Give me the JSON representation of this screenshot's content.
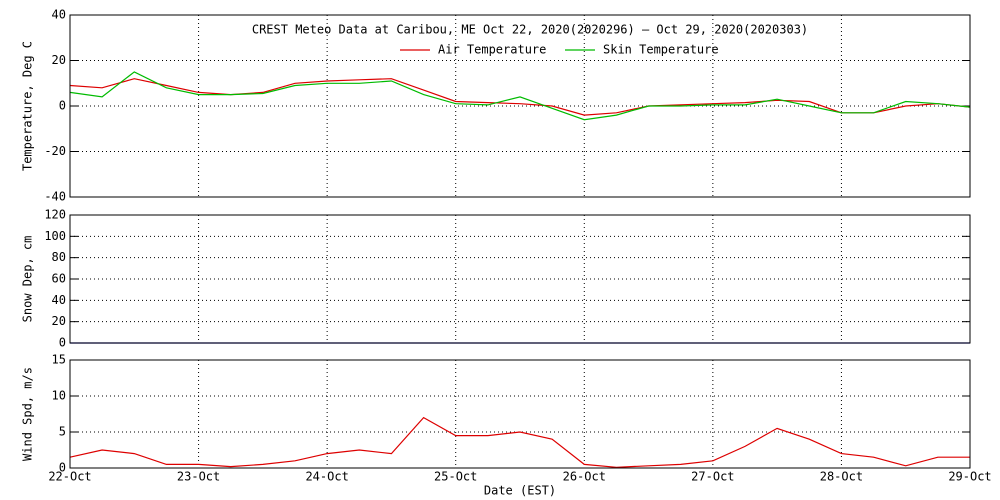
{
  "chart_data": [
    {
      "type": "line",
      "title": "CREST Meteo Data at Caribou, ME   Oct 22, 2020(2020296) — Oct 29, 2020(2020303)",
      "ylabel": "Temperature, Deg C",
      "grid": true,
      "x": [
        296,
        296.25,
        296.5,
        296.75,
        297,
        297.25,
        297.5,
        297.75,
        298,
        298.25,
        298.5,
        298.75,
        299,
        299.25,
        299.5,
        299.75,
        300,
        300.25,
        300.5,
        300.75,
        301,
        301.25,
        301.5,
        301.75,
        302,
        302.25,
        302.5,
        302.75,
        303
      ],
      "xlim": [
        296,
        303
      ],
      "xticks": [
        296,
        297,
        298,
        299,
        300,
        301,
        302,
        303
      ],
      "ylim": [
        -40,
        40
      ],
      "yticks": [
        -40,
        -20,
        0,
        20,
        40
      ],
      "series": [
        {
          "name": "Air Temperature",
          "color": "#dd0000",
          "values": [
            9,
            8,
            12,
            9,
            6,
            5,
            6,
            10,
            11,
            11.5,
            12,
            7,
            2,
            1.5,
            1,
            0,
            -4,
            -3,
            0,
            0.5,
            1,
            1.5,
            2.5,
            2,
            -3,
            -3,
            0,
            1,
            -0.5
          ]
        },
        {
          "name": "Skin Temperature",
          "color": "#00bb00",
          "values": [
            6,
            4,
            15,
            8,
            5,
            5,
            5.5,
            9,
            10,
            10,
            11,
            5,
            1,
            0.5,
            4,
            -1,
            -6,
            -4,
            0,
            0,
            0.5,
            0.5,
            3,
            0,
            -3,
            -3,
            2,
            1,
            -0.5
          ]
        }
      ]
    },
    {
      "type": "line",
      "ylabel": "Snow Dep, cm",
      "grid": true,
      "x": [
        296,
        296.25,
        296.5,
        296.75,
        297,
        297.25,
        297.5,
        297.75,
        298,
        298.25,
        298.5,
        298.75,
        299,
        299.25,
        299.5,
        299.75,
        300,
        300.25,
        300.5,
        300.75,
        301,
        301.25,
        301.5,
        301.75,
        302,
        302.25,
        302.5,
        302.75,
        303
      ],
      "xlim": [
        296,
        303
      ],
      "xticks": [
        296,
        297,
        298,
        299,
        300,
        301,
        302,
        303
      ],
      "ylim": [
        0,
        120
      ],
      "yticks": [
        0,
        20,
        40,
        60,
        80,
        100,
        120
      ],
      "series": [
        {
          "color": "#0000cc",
          "values": [
            0,
            0,
            0,
            0,
            0,
            0,
            0,
            0,
            0,
            0,
            0,
            0,
            0,
            0,
            0,
            0,
            0,
            0,
            0,
            0,
            0,
            0,
            0,
            0,
            0,
            0,
            0,
            0,
            0
          ]
        }
      ]
    },
    {
      "type": "line",
      "ylabel": "Wind Spd, m/s",
      "xlabel": "Date (EST)",
      "grid": true,
      "x": [
        296,
        296.25,
        296.5,
        296.75,
        297,
        297.25,
        297.5,
        297.75,
        298,
        298.25,
        298.5,
        298.75,
        299,
        299.25,
        299.5,
        299.75,
        300,
        300.25,
        300.5,
        300.75,
        301,
        301.25,
        301.5,
        301.75,
        302,
        302.25,
        302.5,
        302.75,
        303
      ],
      "xlim": [
        296,
        303
      ],
      "xticks": [
        {
          "value": 296,
          "label": "22-Oct"
        },
        {
          "value": 297,
          "label": "23-Oct"
        },
        {
          "value": 298,
          "label": "24-Oct"
        },
        {
          "value": 299,
          "label": "25-Oct"
        },
        {
          "value": 300,
          "label": "26-Oct"
        },
        {
          "value": 301,
          "label": "27-Oct"
        },
        {
          "value": 302,
          "label": "28-Oct"
        },
        {
          "value": 303,
          "label": "29-Oct"
        }
      ],
      "ylim": [
        0,
        15
      ],
      "yticks": [
        0,
        5,
        10,
        15
      ],
      "series": [
        {
          "color": "#dd0000",
          "values": [
            1.5,
            2.5,
            2,
            0.5,
            0.5,
            0.2,
            0.5,
            1,
            2,
            2.5,
            2,
            7,
            4.5,
            4.5,
            5,
            4,
            0.5,
            0.1,
            0.3,
            0.5,
            1,
            3,
            5.5,
            4,
            2,
            1.5,
            0.3,
            1.5,
            1.5
          ]
        }
      ]
    }
  ]
}
